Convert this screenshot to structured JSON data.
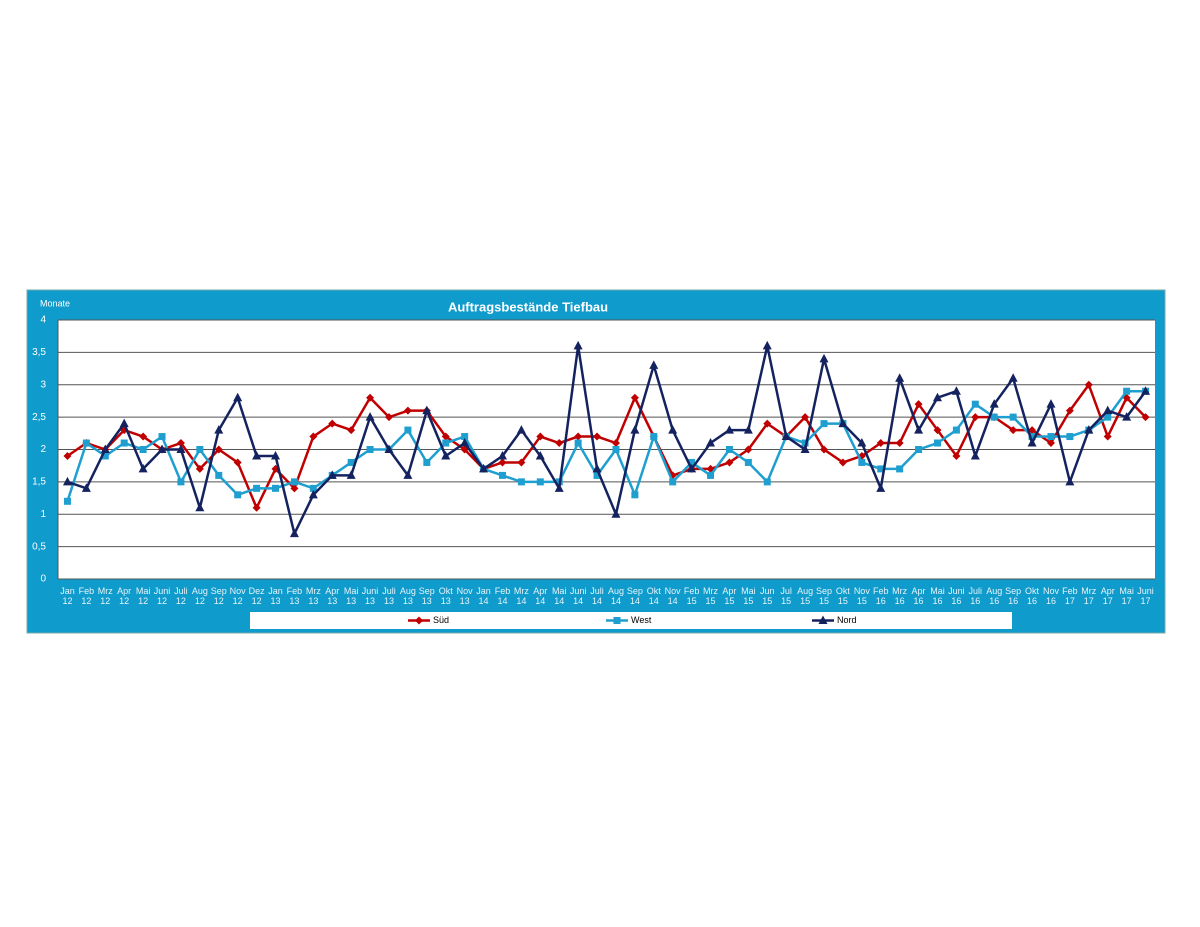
{
  "chart_data": {
    "type": "line",
    "title": "Auftragsbestände Tiefbau",
    "y_label": "Monate",
    "categories": [
      "Jan 12",
      "Feb 12",
      "Mrz 12",
      "Apr 12",
      "Mai 12",
      "Juni 12",
      "Juli 12",
      "Aug 12",
      "Sep 12",
      "Nov 12",
      "Dez 12",
      "Jan 13",
      "Feb 13",
      "Mrz 13",
      "Apr 13",
      "Mai 13",
      "Juni 13",
      "Juli 13",
      "Aug 13",
      "Sep 13",
      "Okt 13",
      "Nov 13",
      "Jan 14",
      "Feb 14",
      "Mrz 14",
      "Apr 14",
      "Mai 14",
      "Juni 14",
      "Juli 14",
      "Aug 14",
      "Sep 14",
      "Okt 14",
      "Nov 14",
      "Feb 15",
      "Mrz 15",
      "Apr 15",
      "Mai 15",
      "Jun 15",
      "Jul 15",
      "Aug 15",
      "Sep 15",
      "Okt 15",
      "Nov 15",
      "Feb 16",
      "Mrz 16",
      "Apr 16",
      "Mai 16",
      "Juni 16",
      "Juli 16",
      "Aug 16",
      "Sep 16",
      "Okt 16",
      "Nov 16",
      "Feb 17",
      "Mrz 17",
      "Apr 17",
      "Mai 17",
      "Juni 17"
    ],
    "series": [
      {
        "name": "Süd",
        "color": "#c00000",
        "marker": "diamond",
        "values": [
          1.9,
          2.1,
          2.0,
          2.3,
          2.2,
          2.0,
          2.1,
          1.7,
          2.0,
          1.8,
          1.1,
          1.7,
          1.4,
          2.2,
          2.4,
          2.3,
          2.8,
          2.5,
          2.6,
          2.6,
          2.2,
          2.0,
          1.7,
          1.8,
          1.8,
          2.2,
          2.1,
          2.2,
          2.2,
          2.1,
          2.8,
          2.2,
          1.6,
          1.7,
          1.7,
          1.8,
          2.0,
          2.4,
          2.2,
          2.5,
          2.0,
          1.8,
          1.9,
          2.1,
          2.1,
          2.7,
          2.3,
          1.9,
          2.5,
          2.5,
          2.3,
          2.3,
          2.1,
          2.6,
          3.0,
          2.2,
          2.8,
          2.5
        ]
      },
      {
        "name": "West",
        "color": "#1e9fcf",
        "marker": "square",
        "values": [
          1.2,
          2.1,
          1.9,
          2.1,
          2.0,
          2.2,
          1.5,
          2.0,
          1.6,
          1.3,
          1.4,
          1.4,
          1.5,
          1.4,
          1.6,
          1.8,
          2.0,
          2.0,
          2.3,
          1.8,
          2.1,
          2.2,
          1.7,
          1.6,
          1.5,
          1.5,
          1.5,
          2.1,
          1.6,
          2.0,
          1.3,
          2.2,
          1.5,
          1.8,
          1.6,
          2.0,
          1.8,
          1.5,
          2.2,
          2.1,
          2.4,
          2.4,
          1.8,
          1.7,
          1.7,
          2.0,
          2.1,
          2.3,
          2.7,
          2.5,
          2.5,
          2.2,
          2.2,
          2.2,
          2.3,
          2.5,
          2.9,
          2.9
        ]
      },
      {
        "name": "Nord",
        "color": "#14235f",
        "marker": "triangle",
        "values": [
          1.5,
          1.4,
          2.0,
          2.4,
          1.7,
          2.0,
          2.0,
          1.1,
          2.3,
          2.8,
          1.9,
          1.9,
          0.7,
          1.3,
          1.6,
          1.6,
          2.5,
          2.0,
          1.6,
          2.6,
          1.9,
          2.1,
          1.7,
          1.9,
          2.3,
          1.9,
          1.4,
          3.6,
          1.7,
          1.0,
          2.3,
          3.3,
          2.3,
          1.7,
          2.1,
          2.3,
          2.3,
          3.6,
          2.2,
          2.0,
          3.4,
          2.4,
          2.1,
          1.4,
          3.1,
          2.3,
          2.8,
          2.9,
          1.9,
          2.7,
          3.1,
          2.1,
          2.7,
          1.5,
          2.3,
          2.6,
          2.5,
          2.9
        ]
      }
    ],
    "ylim": [
      0,
      4
    ],
    "yticks": [
      0,
      {
        "value": 0.5,
        "label": "0,5"
      },
      1,
      {
        "value": 1.5,
        "label": "1,5"
      },
      2,
      {
        "value": 2.5,
        "label": "2,5"
      },
      3,
      {
        "value": 3.5,
        "label": "3,5"
      },
      4
    ],
    "grid": true,
    "legend": "bottom"
  }
}
